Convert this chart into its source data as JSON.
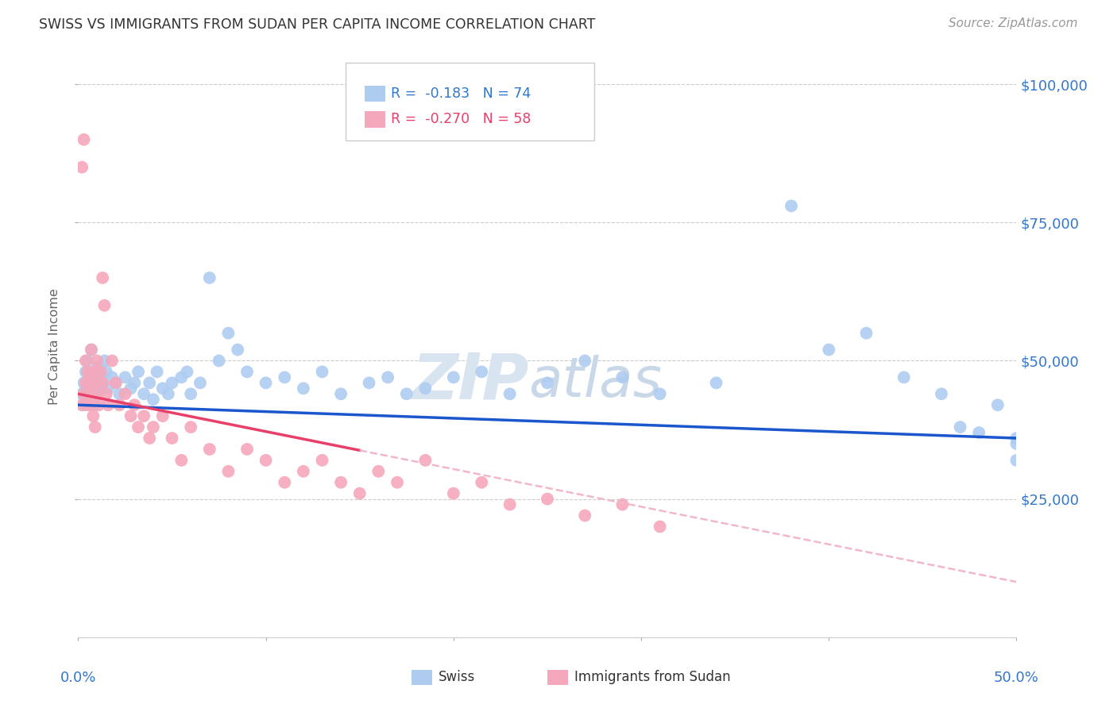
{
  "title": "SWISS VS IMMIGRANTS FROM SUDAN PER CAPITA INCOME CORRELATION CHART",
  "source": "Source: ZipAtlas.com",
  "ylabel": "Per Capita Income",
  "watermark_zip": "ZIP",
  "watermark_atlas": "atlas",
  "legend_swiss_r": "-0.183",
  "legend_swiss_n": "74",
  "legend_sudan_r": "-0.270",
  "legend_sudan_n": "58",
  "xlim": [
    0.0,
    0.5
  ],
  "ylim": [
    0,
    105000
  ],
  "ytick_vals": [
    25000,
    50000,
    75000,
    100000
  ],
  "ytick_labels": [
    "$25,000",
    "$50,000",
    "$75,000",
    "$100,000"
  ],
  "color_swiss": "#aeccf0",
  "color_swiss_line": "#1a56cc",
  "color_sudan": "#f5a8bc",
  "color_sudan_line": "#e8406a",
  "color_sudan_dashed": "#f0b8c8",
  "swiss_x": [
    0.002,
    0.003,
    0.003,
    0.004,
    0.004,
    0.005,
    0.005,
    0.006,
    0.006,
    0.007,
    0.007,
    0.008,
    0.008,
    0.009,
    0.009,
    0.01,
    0.01,
    0.011,
    0.012,
    0.013,
    0.014,
    0.015,
    0.016,
    0.018,
    0.02,
    0.022,
    0.025,
    0.028,
    0.03,
    0.032,
    0.035,
    0.038,
    0.04,
    0.042,
    0.045,
    0.048,
    0.05,
    0.055,
    0.058,
    0.06,
    0.065,
    0.07,
    0.075,
    0.08,
    0.085,
    0.09,
    0.1,
    0.11,
    0.12,
    0.13,
    0.14,
    0.155,
    0.165,
    0.175,
    0.185,
    0.2,
    0.215,
    0.23,
    0.25,
    0.27,
    0.29,
    0.31,
    0.34,
    0.38,
    0.4,
    0.42,
    0.44,
    0.46,
    0.47,
    0.48,
    0.49,
    0.5,
    0.5,
    0.5
  ],
  "swiss_y": [
    44000,
    42000,
    46000,
    45000,
    48000,
    43000,
    50000,
    44000,
    47000,
    45000,
    52000,
    43000,
    48000,
    46000,
    42000,
    47000,
    44000,
    49000,
    45000,
    46000,
    50000,
    48000,
    45000,
    47000,
    46000,
    44000,
    47000,
    45000,
    46000,
    48000,
    44000,
    46000,
    43000,
    48000,
    45000,
    44000,
    46000,
    47000,
    48000,
    44000,
    46000,
    65000,
    50000,
    55000,
    52000,
    48000,
    46000,
    47000,
    45000,
    48000,
    44000,
    46000,
    47000,
    44000,
    45000,
    47000,
    48000,
    44000,
    46000,
    50000,
    47000,
    44000,
    46000,
    78000,
    52000,
    55000,
    47000,
    44000,
    38000,
    37000,
    42000,
    35000,
    32000,
    36000
  ],
  "sudan_x": [
    0.002,
    0.002,
    0.003,
    0.003,
    0.004,
    0.004,
    0.005,
    0.005,
    0.006,
    0.006,
    0.007,
    0.007,
    0.008,
    0.008,
    0.009,
    0.009,
    0.01,
    0.01,
    0.011,
    0.012,
    0.013,
    0.013,
    0.014,
    0.015,
    0.016,
    0.018,
    0.02,
    0.022,
    0.025,
    0.028,
    0.03,
    0.032,
    0.035,
    0.038,
    0.04,
    0.045,
    0.05,
    0.055,
    0.06,
    0.07,
    0.08,
    0.09,
    0.1,
    0.11,
    0.12,
    0.13,
    0.14,
    0.15,
    0.16,
    0.17,
    0.185,
    0.2,
    0.215,
    0.23,
    0.25,
    0.27,
    0.29,
    0.31
  ],
  "sudan_y": [
    85000,
    42000,
    90000,
    44000,
    50000,
    46000,
    48000,
    42000,
    46000,
    44000,
    52000,
    42000,
    48000,
    40000,
    46000,
    38000,
    50000,
    44000,
    42000,
    48000,
    65000,
    46000,
    60000,
    44000,
    42000,
    50000,
    46000,
    42000,
    44000,
    40000,
    42000,
    38000,
    40000,
    36000,
    38000,
    40000,
    36000,
    32000,
    38000,
    34000,
    30000,
    34000,
    32000,
    28000,
    30000,
    32000,
    28000,
    26000,
    30000,
    28000,
    32000,
    26000,
    28000,
    24000,
    25000,
    22000,
    24000,
    20000
  ],
  "background_color": "#ffffff",
  "grid_color": "#cccccc",
  "title_color": "#333333",
  "axis_label_color": "#666666",
  "tick_color": "#3377cc"
}
